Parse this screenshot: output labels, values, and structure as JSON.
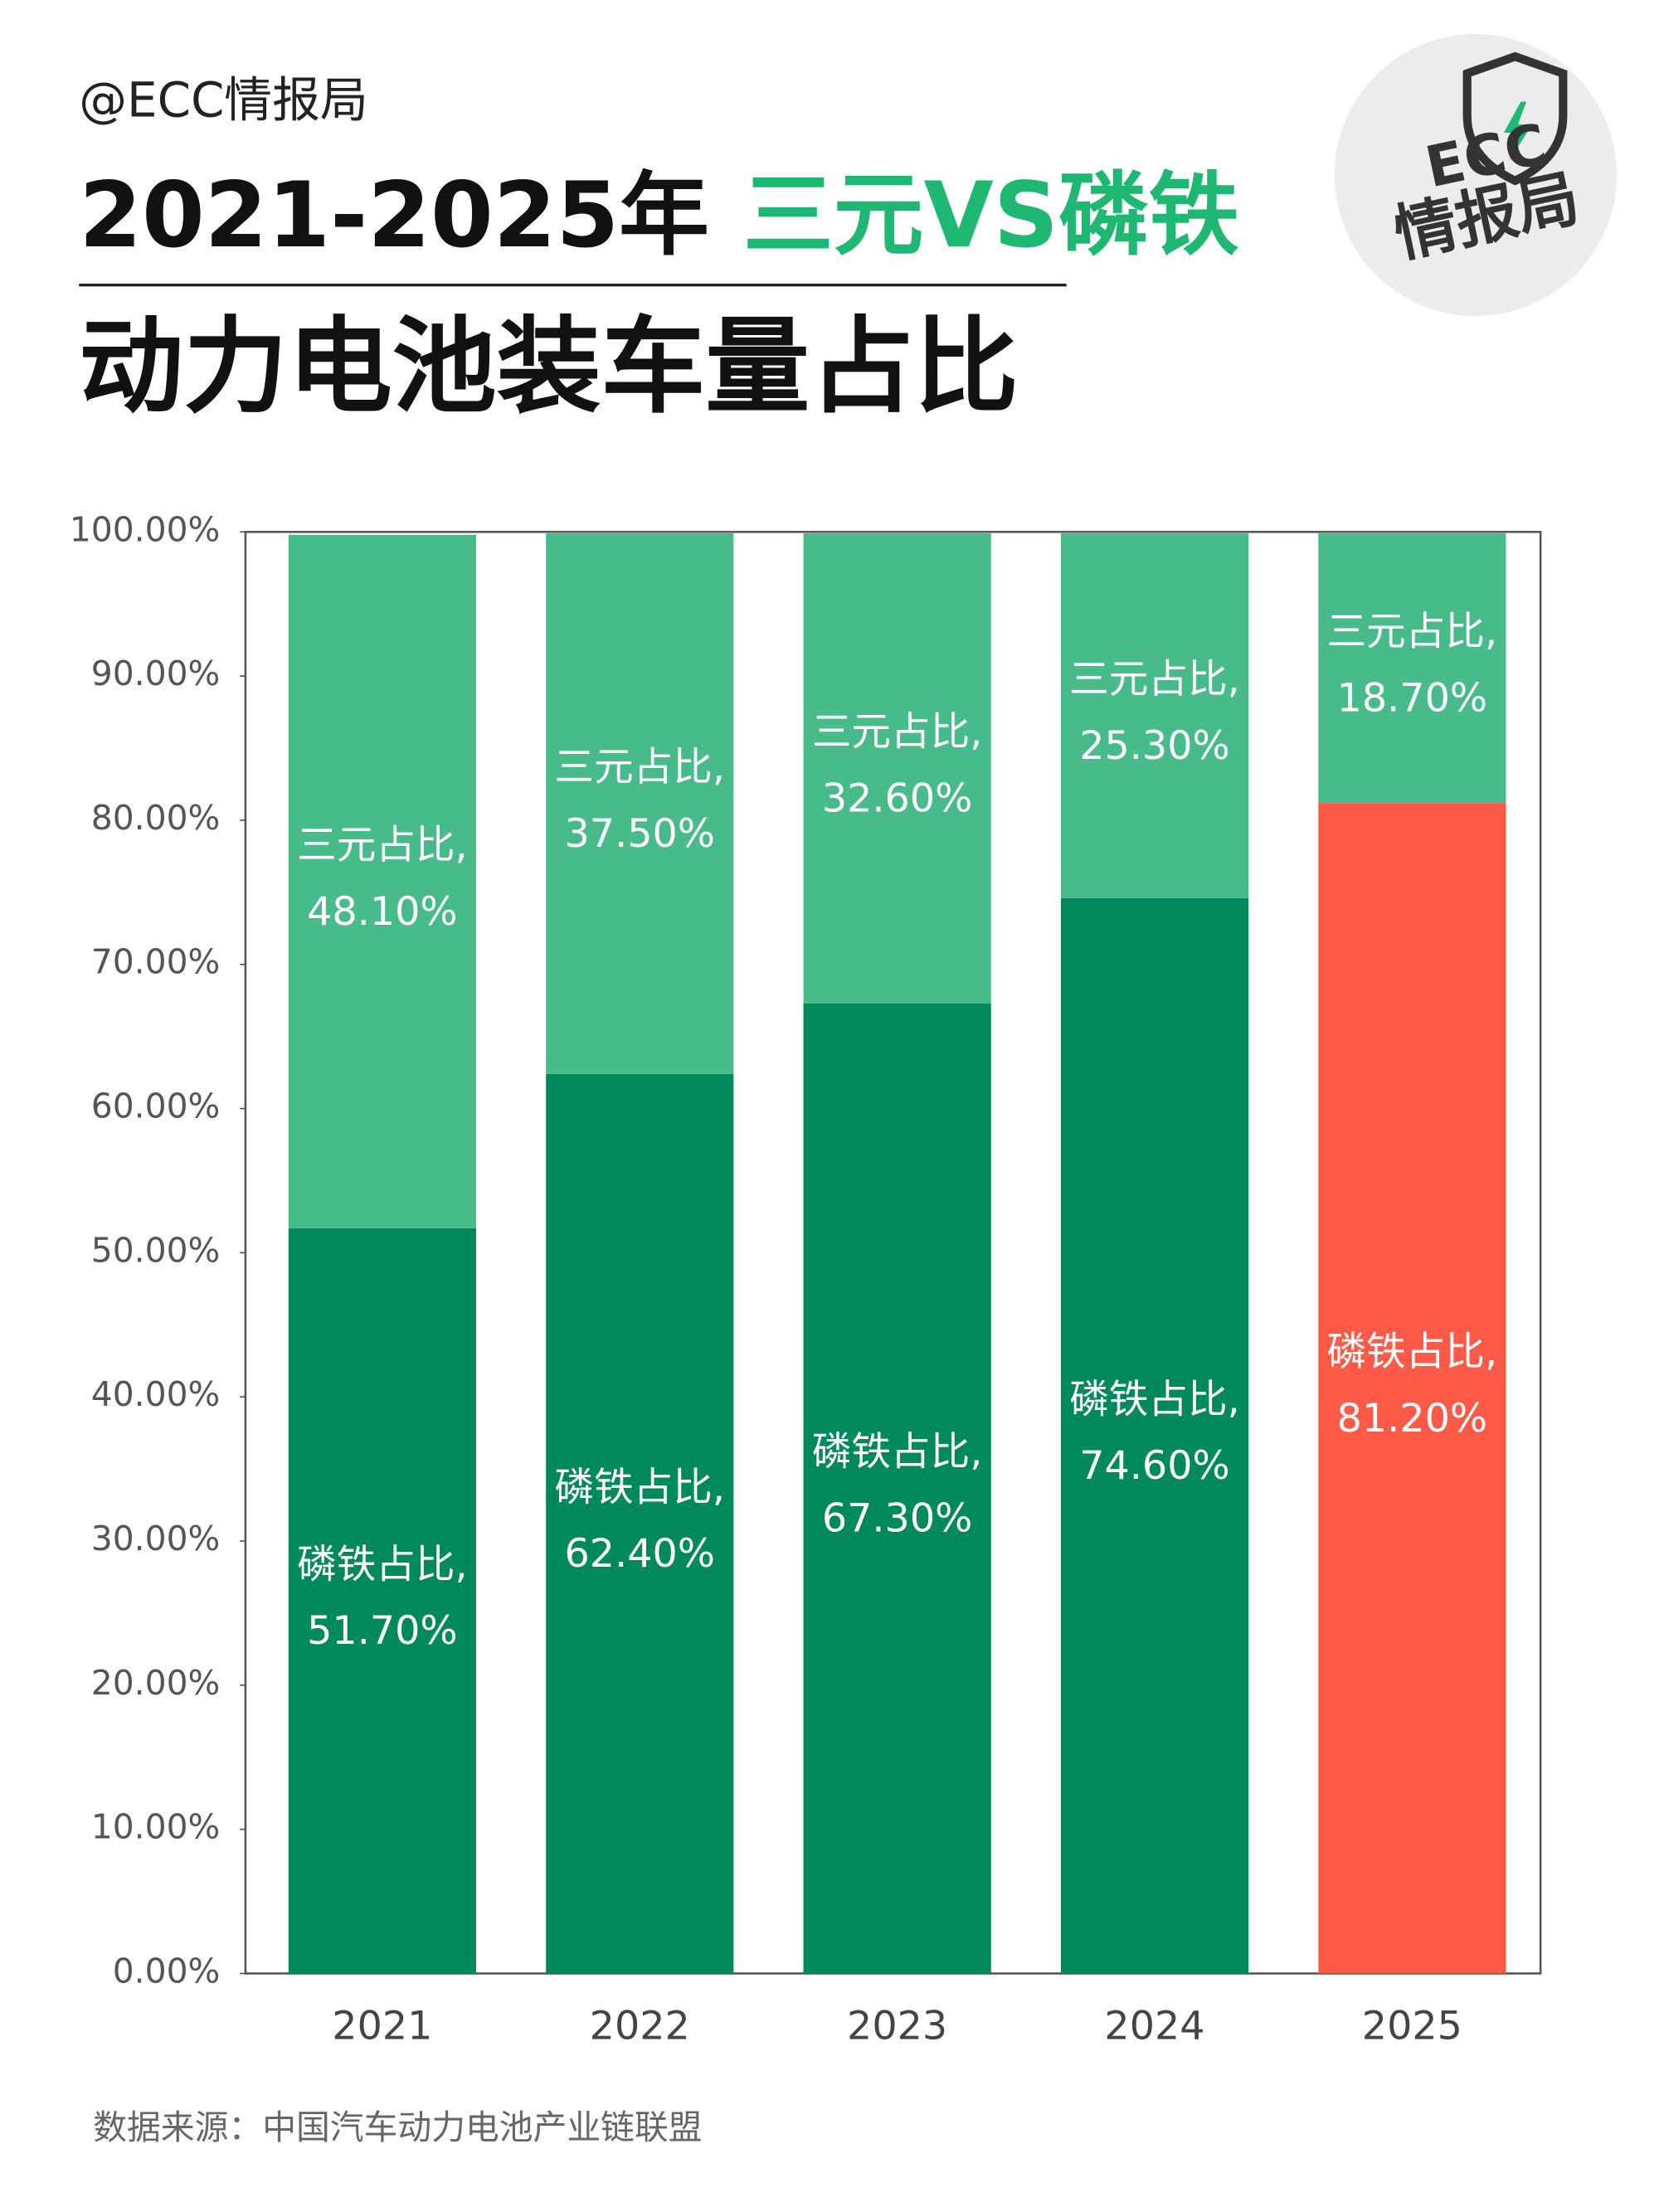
{
  "header": {
    "handle": "@ECC情报局",
    "title": "2021-2025年",
    "title_highlight": "三元VS磷铁",
    "subtitle": "动力电池装车量占比"
  },
  "logo": {
    "line1": "ECC",
    "line2": "情报局"
  },
  "chart_data": {
    "type": "stacked_bar",
    "categories": [
      "2021",
      "2022",
      "2023",
      "2024",
      "2025"
    ],
    "series": [
      {
        "name": "磷铁占比,",
        "color": "#008a5b",
        "colors": [
          "#008a5b",
          "#008a5b",
          "#008a5b",
          "#008a5b",
          "#ff5a47"
        ],
        "values": [
          51.7,
          62.4,
          67.3,
          74.6,
          81.2
        ],
        "value_labels": [
          "51.70%",
          "62.40%",
          "67.30%",
          "74.60%",
          "81.20%"
        ]
      },
      {
        "name": "三元占比,",
        "color": "#47bc8a",
        "values": [
          48.1,
          37.5,
          32.6,
          25.3,
          18.7
        ],
        "value_labels": [
          "48.10%",
          "37.50%",
          "32.60%",
          "25.30%",
          "18.70%"
        ]
      }
    ],
    "ylim": [
      0,
      100
    ],
    "yticks": [
      {
        "value": 0,
        "label": "0.00%"
      },
      {
        "value": 10,
        "label": "10.00%"
      },
      {
        "value": 20,
        "label": "20.00%"
      },
      {
        "value": 30,
        "label": "30.00%"
      },
      {
        "value": 40,
        "label": "40.00%"
      },
      {
        "value": 50,
        "label": "50.00%"
      },
      {
        "value": 60,
        "label": "60.00%"
      },
      {
        "value": 70,
        "label": "70.00%"
      },
      {
        "value": 80,
        "label": "80.00%"
      },
      {
        "value": 90,
        "label": "90.00%"
      },
      {
        "value": 100,
        "label": "100.00%"
      }
    ]
  },
  "source": "数据来源：中国汽车动力电池产业链联盟"
}
